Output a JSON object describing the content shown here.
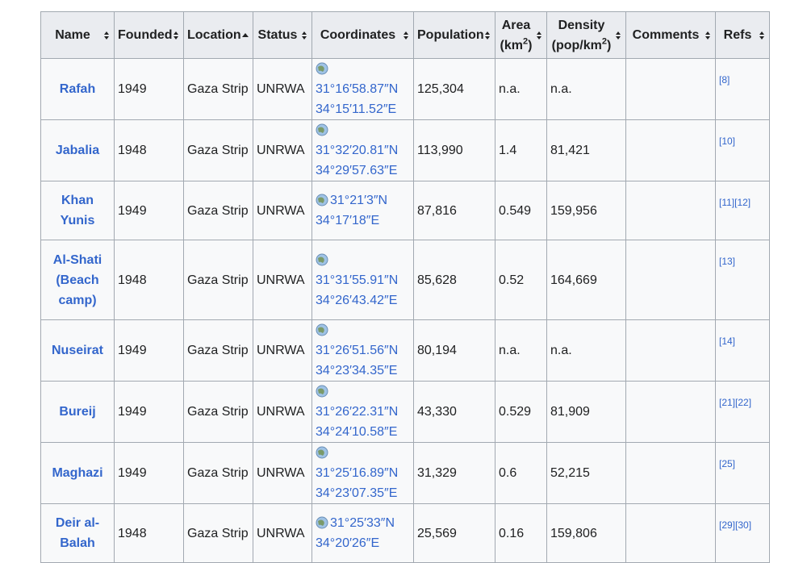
{
  "table": {
    "headers": [
      {
        "label": "Name"
      },
      {
        "label": "Founded"
      },
      {
        "label": "Location"
      },
      {
        "label": "Status"
      },
      {
        "label": "Coordinates"
      },
      {
        "label": "Population"
      },
      {
        "label": "Area",
        "unit": "(km",
        "sup": "2",
        "tail": ")"
      },
      {
        "label": "Density",
        "unit": "(pop/km",
        "sup": "2",
        "tail": ")"
      },
      {
        "label": "Comments"
      },
      {
        "label": "Refs"
      }
    ],
    "rows": [
      {
        "name": "Rafah",
        "founded": "1949",
        "location": "Gaza Strip",
        "status": "UNRWA",
        "lat": "31°16′58.87″N",
        "lon": "34°15′11.52″E",
        "population": "125,304",
        "area": "n.a.",
        "density": "n.a.",
        "refs": [
          "[8]"
        ]
      },
      {
        "name": "Jabalia",
        "founded": "1948",
        "location": "Gaza Strip",
        "status": "UNRWA",
        "lat": "31°32′20.81″N",
        "lon": "34°29′57.63″E",
        "population": "113,990",
        "area": "1.4",
        "density": "81,421",
        "refs": [
          "[10]"
        ]
      },
      {
        "name": "Khan Yunis",
        "founded": "1949",
        "location": "Gaza Strip",
        "status": "UNRWA",
        "lat": "31°21′3″N",
        "lon": "34°17′18″E",
        "population": "87,816",
        "area": "0.549",
        "density": "159,956",
        "refs": [
          "[11]",
          "[12]"
        ]
      },
      {
        "name": "Al-Shati (Beach camp)",
        "founded": "1948",
        "location": "Gaza Strip",
        "status": "UNRWA",
        "lat": "31°31′55.91″N",
        "lon": "34°26′43.42″E",
        "population": "85,628",
        "area": "0.52",
        "density": "164,669",
        "refs": [
          "[13]"
        ]
      },
      {
        "name": "Nuseirat",
        "founded": "1949",
        "location": "Gaza Strip",
        "status": "UNRWA",
        "lat": "31°26′51.56″N",
        "lon": "34°23′34.35″E",
        "population": "80,194",
        "area": "n.a.",
        "density": "n.a.",
        "refs": [
          "[14]"
        ]
      },
      {
        "name": "Bureij",
        "founded": "1949",
        "location": "Gaza Strip",
        "status": "UNRWA",
        "lat": "31°26′22.31″N",
        "lon": "34°24′10.58″E",
        "population": "43,330",
        "area": "0.529",
        "density": "81,909",
        "refs": [
          "[21]",
          "[22]"
        ]
      },
      {
        "name": "Maghazi",
        "founded": "1949",
        "location": "Gaza Strip",
        "status": "UNRWA",
        "lat": "31°25′16.89″N",
        "lon": "34°23′07.35″E",
        "population": "31,329",
        "area": "0.6",
        "density": "52,215",
        "refs": [
          "[25]"
        ]
      },
      {
        "name": "Deir al-Balah",
        "founded": "1948",
        "location": "Gaza Strip",
        "status": "UNRWA",
        "lat": "31°25′33″N",
        "lon": "34°20′26″E",
        "population": "25,569",
        "area": "0.16",
        "density": "159,806",
        "refs": [
          "[29]",
          "[30]"
        ]
      }
    ]
  }
}
